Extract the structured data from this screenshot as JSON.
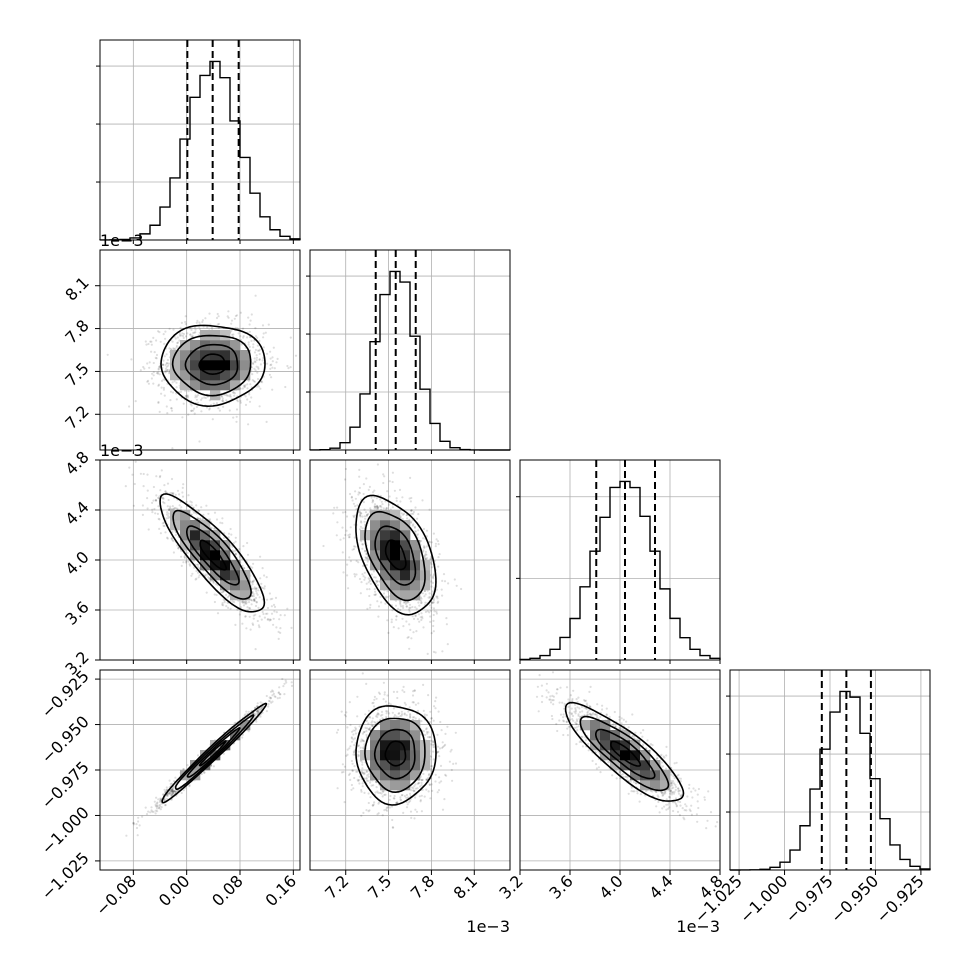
{
  "chart_data": {
    "type": "corner",
    "parameters": [
      {
        "xlim": [
          -0.13,
          0.17
        ],
        "ticks": [
          -0.08,
          0.0,
          0.08,
          0.16
        ],
        "tick_labels": [
          "−0.08",
          "0.00",
          "0.08",
          "0.16"
        ],
        "scale_label": "",
        "quantiles": [
          0.001,
          0.039,
          0.078
        ],
        "mean": 0.039,
        "sigma": 0.039,
        "hist_ticks": 3
      },
      {
        "xlim": [
          6.95,
          8.35
        ],
        "ticks": [
          7.2,
          7.5,
          7.8,
          8.1
        ],
        "tick_labels": [
          "7.2",
          "7.5",
          "7.8",
          "8.1"
        ],
        "scale_label": "1e−3",
        "quantiles": [
          7.41,
          7.55,
          7.69
        ],
        "mean": 7.55,
        "sigma": 0.14,
        "hist_ticks": 3
      },
      {
        "xlim": [
          3.2,
          4.8
        ],
        "ticks": [
          3.2,
          3.6,
          4.0,
          4.4,
          4.8
        ],
        "tick_labels": [
          "3.2",
          "3.6",
          "4.0",
          "4.4",
          "4.8"
        ],
        "scale_label": "1e−3",
        "quantiles": [
          3.81,
          4.04,
          4.28
        ],
        "mean": 4.04,
        "sigma": 0.235,
        "hist_ticks": 2
      },
      {
        "xlim": [
          -1.03,
          -0.92
        ],
        "ticks": [
          -1.025,
          -1.0,
          -0.975,
          -0.95,
          -0.925
        ],
        "tick_labels": [
          "−1.025",
          "−1.000",
          "−0.975",
          "−0.950",
          "−0.925"
        ],
        "scale_label": "",
        "quantiles": [
          -0.9795,
          -0.966,
          -0.9525
        ],
        "mean": -0.966,
        "sigma": 0.0135,
        "hist_ticks": 3
      }
    ],
    "correlations": [
      {
        "row": 1,
        "col": 0,
        "rho": 0.0
      },
      {
        "row": 2,
        "col": 0,
        "rho": -0.85
      },
      {
        "row": 2,
        "col": 1,
        "rho": -0.45
      },
      {
        "row": 3,
        "col": 0,
        "rho": 0.985
      },
      {
        "row": 3,
        "col": 1,
        "rho": 0.0
      },
      {
        "row": 3,
        "col": 2,
        "rho": -0.85
      }
    ],
    "contour_levels_sigma": [
      0.5,
      1.0,
      1.5,
      2.0
    ],
    "grid": true
  }
}
